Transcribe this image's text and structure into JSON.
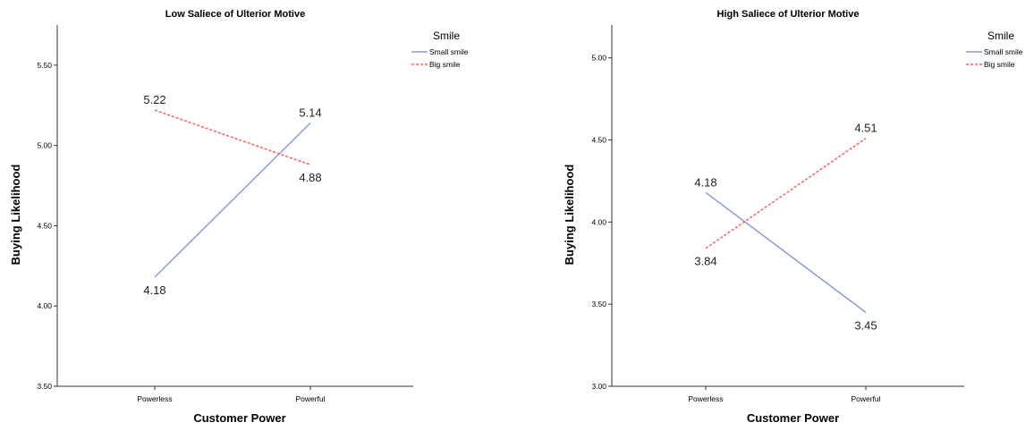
{
  "chart_data": [
    {
      "type": "line",
      "title": "Low Saliece of Ulterior Motive",
      "xlabel": "Customer Power",
      "ylabel": "Buying Likelihood",
      "categories": [
        "Powerless",
        "Powerful"
      ],
      "ylim": [
        3.5,
        5.75
      ],
      "yticks": [
        3.5,
        4.0,
        4.5,
        5.0,
        5.5
      ],
      "ytick_labels": [
        "3.50",
        "4.00",
        "4.50",
        "5.00",
        "5.50"
      ],
      "grid": false,
      "legend": {
        "title": "Smile",
        "placement": "top-right"
      },
      "series": [
        {
          "name": "Small smile",
          "values": [
            4.18,
            5.14
          ],
          "labels": [
            "4.18",
            "5.14"
          ],
          "label_positions": [
            "below",
            "above"
          ],
          "color": "#8a9bd8",
          "dash": "solid"
        },
        {
          "name": "Big smile",
          "values": [
            5.22,
            4.88
          ],
          "labels": [
            "5.22",
            "4.88"
          ],
          "label_positions": [
            "above",
            "below"
          ],
          "color": "#ff5a5a",
          "dash": "dashed"
        }
      ]
    },
    {
      "type": "line",
      "title": "High Saliece of Ulterior Motive",
      "xlabel": "Customer Power",
      "ylabel": "Buying Likelihood",
      "categories": [
        "Powerless",
        "Powerful"
      ],
      "ylim": [
        3.0,
        5.2
      ],
      "yticks": [
        3.0,
        3.5,
        4.0,
        4.5,
        5.0
      ],
      "ytick_labels": [
        "3.00",
        "3.50",
        "4.00",
        "4.50",
        "5.00"
      ],
      "grid": false,
      "legend": {
        "title": "Smile",
        "placement": "top-right"
      },
      "series": [
        {
          "name": "Small smile",
          "values": [
            4.18,
            3.45
          ],
          "labels": [
            "4.18",
            "3.45"
          ],
          "label_positions": [
            "above",
            "below"
          ],
          "color": "#8a9bd8",
          "dash": "solid"
        },
        {
          "name": "Big smile",
          "values": [
            3.84,
            4.51
          ],
          "labels": [
            "3.84",
            "4.51"
          ],
          "label_positions": [
            "below",
            "above"
          ],
          "color": "#ff5a5a",
          "dash": "dashed"
        }
      ]
    }
  ]
}
